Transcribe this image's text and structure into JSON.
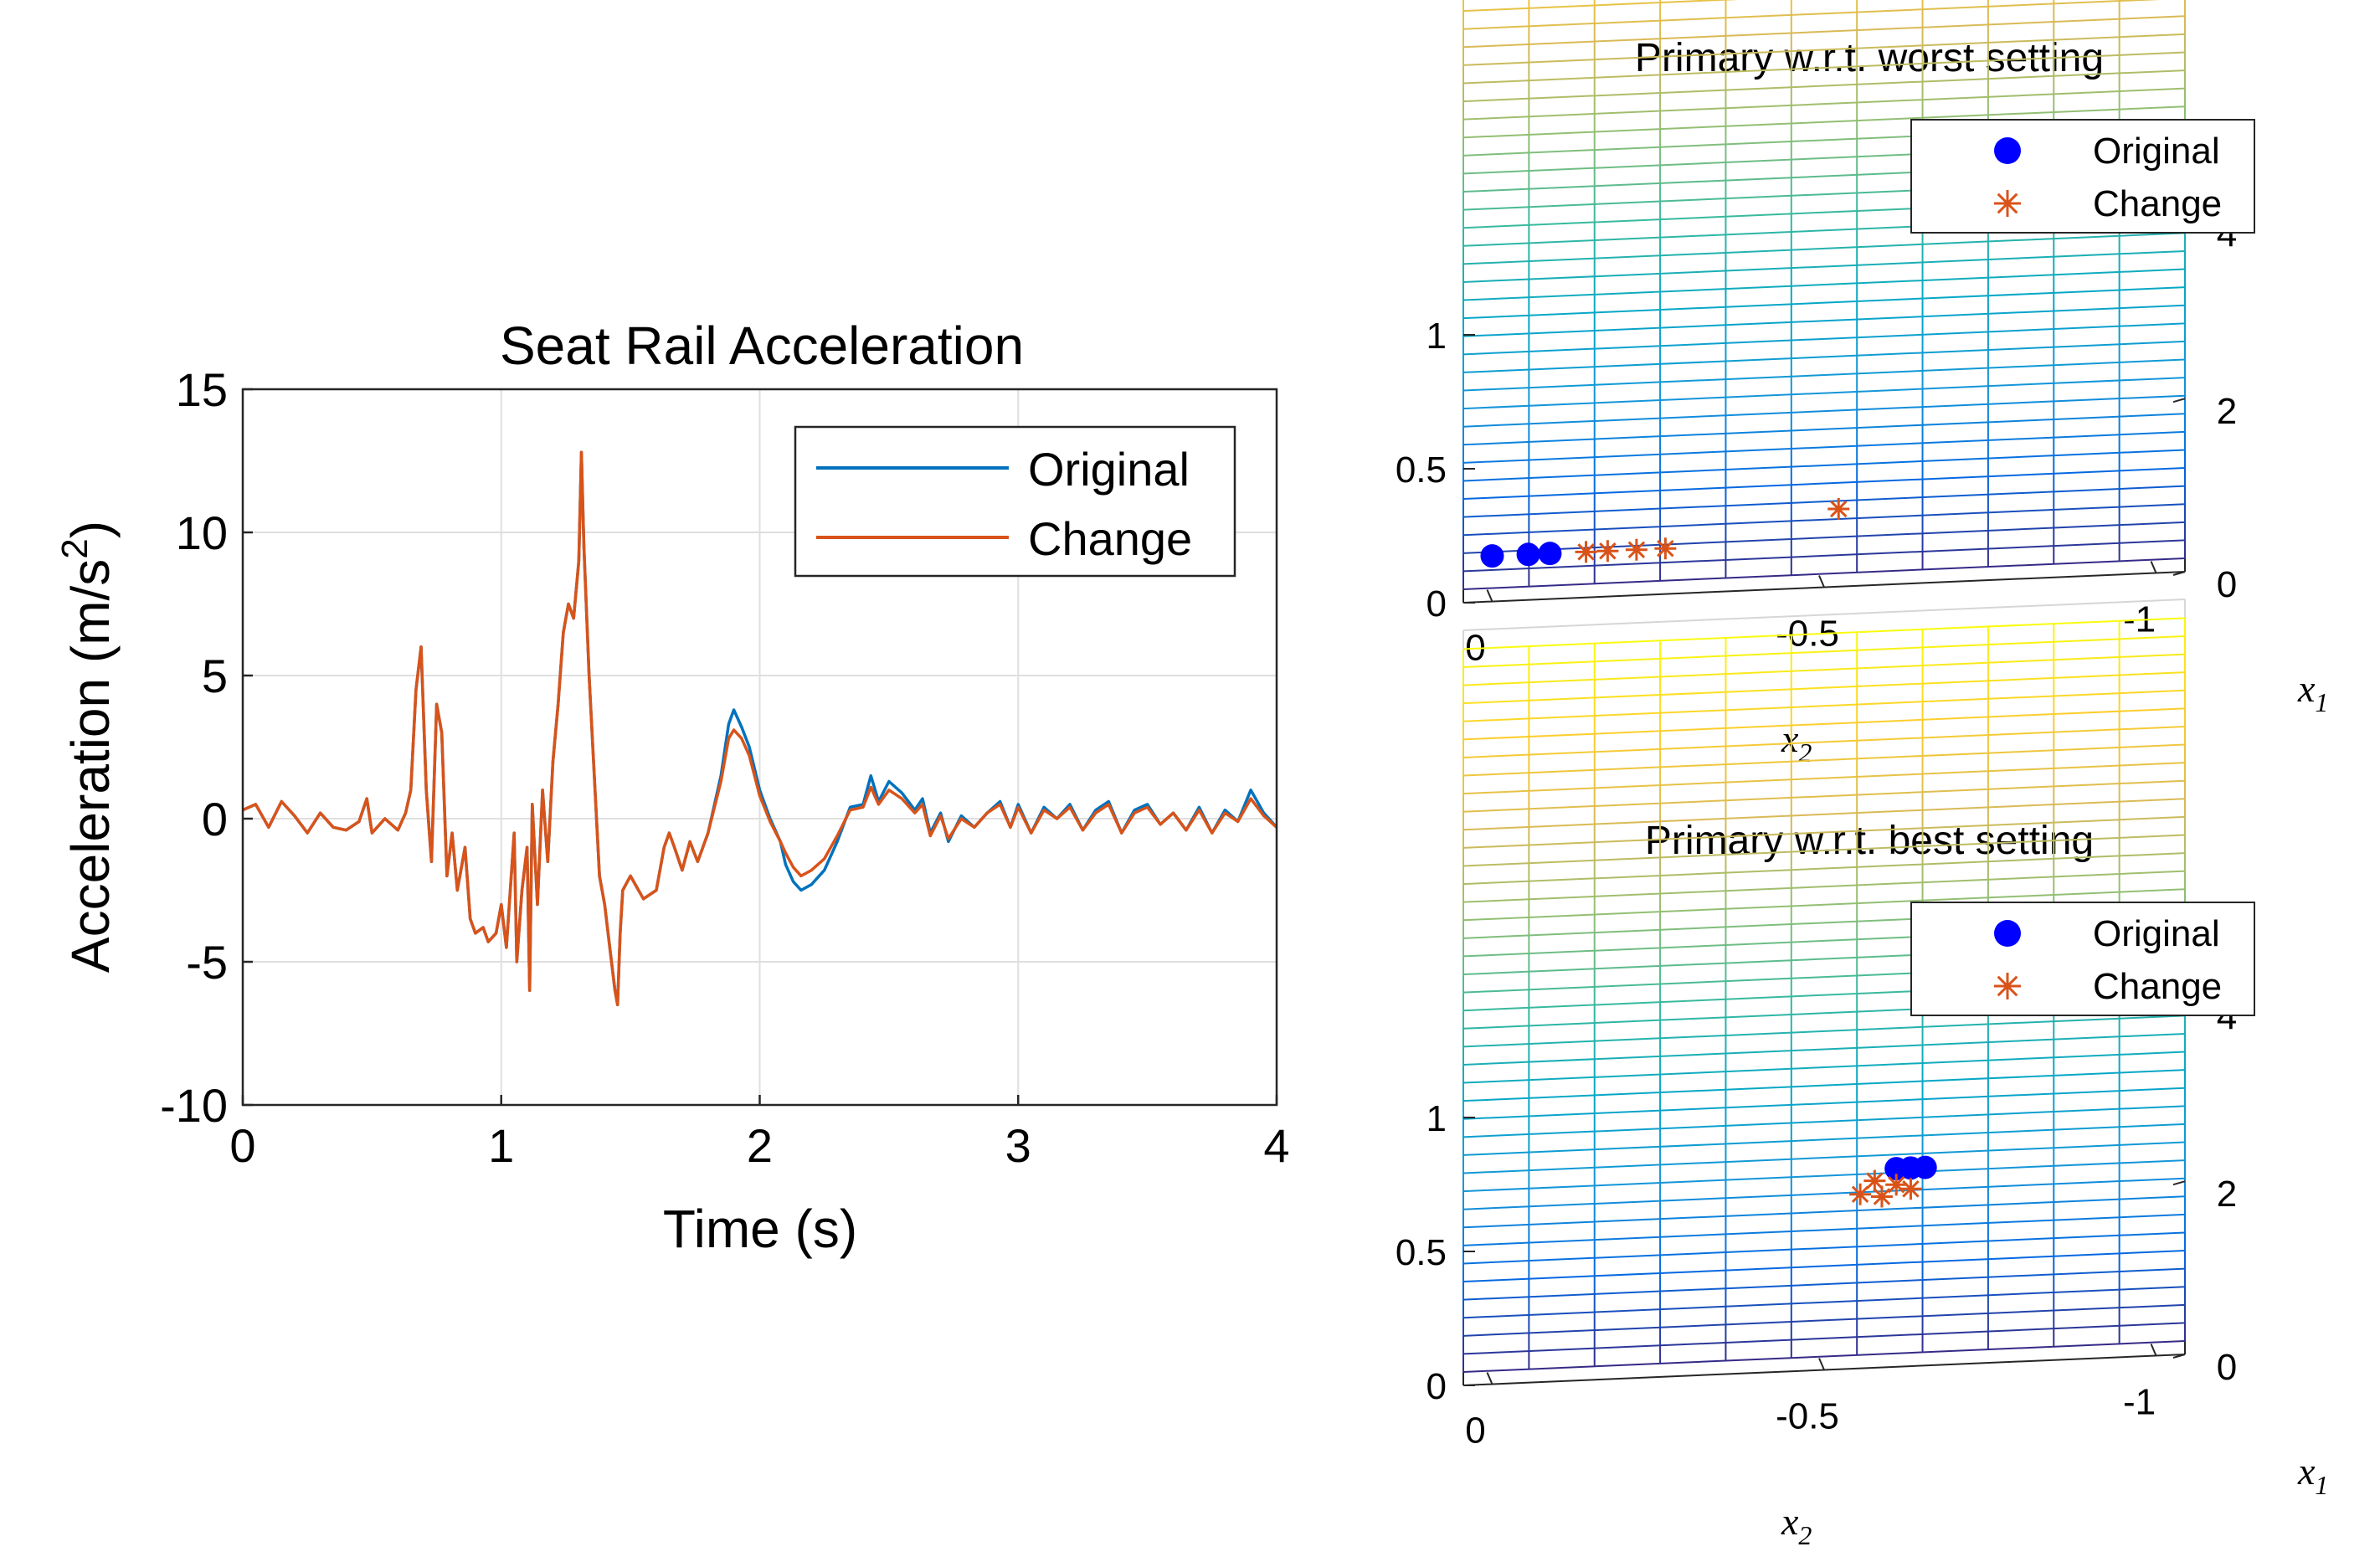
{
  "chart_data": [
    {
      "id": "seat-rail",
      "type": "line",
      "title": "Seat Rail Acceleration",
      "xlabel": "Time (s)",
      "ylabel_main": "Acceleration (m/s",
      "ylabel_sup": "2",
      "ylabel_close": ")",
      "xlim": [
        0,
        4
      ],
      "ylim": [
        -10,
        15
      ],
      "grid": true,
      "legend_position": "top-right",
      "xticks": [
        0,
        1,
        2,
        3,
        4
      ],
      "yticks": [
        -10,
        -5,
        0,
        5,
        10,
        15
      ],
      "xtick_labels": [
        "0",
        "1",
        "2",
        "3",
        "4"
      ],
      "ytick_labels": [
        "-10",
        "-5",
        "0",
        "5",
        "10",
        "15"
      ],
      "series": [
        {
          "name": "Original",
          "color": "#0072BD",
          "points": [
            [
              0,
              0.3
            ],
            [
              0.05,
              0.5
            ],
            [
              0.1,
              -0.3
            ],
            [
              0.15,
              0.6
            ],
            [
              0.2,
              0.1
            ],
            [
              0.25,
              -0.5
            ],
            [
              0.3,
              0.2
            ],
            [
              0.35,
              -0.3
            ],
            [
              0.4,
              -0.4
            ],
            [
              0.45,
              -0.1
            ],
            [
              0.48,
              0.7
            ],
            [
              0.5,
              -0.5
            ],
            [
              0.55,
              0
            ],
            [
              0.6,
              -0.4
            ],
            [
              0.63,
              0.2
            ],
            [
              0.65,
              1.0
            ],
            [
              0.67,
              4.5
            ],
            [
              0.69,
              6.0
            ],
            [
              0.71,
              1.0
            ],
            [
              0.73,
              -1.5
            ],
            [
              0.75,
              4.0
            ],
            [
              0.77,
              3.0
            ],
            [
              0.79,
              -2.0
            ],
            [
              0.81,
              -0.5
            ],
            [
              0.83,
              -2.5
            ],
            [
              0.86,
              -1.0
            ],
            [
              0.88,
              -3.5
            ],
            [
              0.9,
              -4.0
            ],
            [
              0.93,
              -3.8
            ],
            [
              0.95,
              -4.3
            ],
            [
              0.98,
              -4.0
            ],
            [
              1.0,
              -3.0
            ],
            [
              1.02,
              -4.5
            ],
            [
              1.05,
              -0.5
            ],
            [
              1.06,
              -5.0
            ],
            [
              1.08,
              -2.5
            ],
            [
              1.1,
              -1.0
            ],
            [
              1.11,
              -6.0
            ],
            [
              1.12,
              0.5
            ],
            [
              1.14,
              -3.0
            ],
            [
              1.16,
              1.0
            ],
            [
              1.18,
              -1.5
            ],
            [
              1.2,
              2.0
            ],
            [
              1.22,
              4.0
            ],
            [
              1.24,
              6.5
            ],
            [
              1.26,
              7.5
            ],
            [
              1.28,
              7.0
            ],
            [
              1.3,
              9.0
            ],
            [
              1.31,
              12.8
            ],
            [
              1.32,
              9.5
            ],
            [
              1.34,
              5.0
            ],
            [
              1.36,
              1.5
            ],
            [
              1.38,
              -2.0
            ],
            [
              1.4,
              -3.0
            ],
            [
              1.42,
              -4.5
            ],
            [
              1.44,
              -6.0
            ],
            [
              1.45,
              -6.5
            ],
            [
              1.46,
              -4.0
            ],
            [
              1.47,
              -2.5
            ],
            [
              1.5,
              -2.0
            ],
            [
              1.55,
              -2.8
            ],
            [
              1.6,
              -2.5
            ],
            [
              1.63,
              -1.0
            ],
            [
              1.65,
              -0.5
            ],
            [
              1.67,
              -1.0
            ],
            [
              1.7,
              -1.8
            ],
            [
              1.73,
              -0.8
            ],
            [
              1.76,
              -1.5
            ],
            [
              1.8,
              -0.5
            ],
            [
              1.85,
              1.5
            ],
            [
              1.88,
              3.3
            ],
            [
              1.9,
              3.8
            ],
            [
              1.93,
              3.2
            ],
            [
              1.96,
              2.5
            ],
            [
              2.0,
              1.0
            ],
            [
              2.04,
              0
            ],
            [
              2.08,
              -0.8
            ],
            [
              2.1,
              -1.6
            ],
            [
              2.13,
              -2.2
            ],
            [
              2.16,
              -2.5
            ],
            [
              2.2,
              -2.3
            ],
            [
              2.25,
              -1.8
            ],
            [
              2.3,
              -0.8
            ],
            [
              2.35,
              0.4
            ],
            [
              2.4,
              0.5
            ],
            [
              2.43,
              1.5
            ],
            [
              2.46,
              0.6
            ],
            [
              2.5,
              1.3
            ],
            [
              2.55,
              0.9
            ],
            [
              2.6,
              0.3
            ],
            [
              2.63,
              0.7
            ],
            [
              2.66,
              -0.5
            ],
            [
              2.7,
              0.2
            ],
            [
              2.73,
              -0.8
            ],
            [
              2.78,
              0.1
            ],
            [
              2.83,
              -0.3
            ],
            [
              2.88,
              0.2
            ],
            [
              2.93,
              0.6
            ],
            [
              2.97,
              -0.3
            ],
            [
              3.0,
              0.5
            ],
            [
              3.05,
              -0.5
            ],
            [
              3.1,
              0.4
            ],
            [
              3.15,
              0
            ],
            [
              3.2,
              0.5
            ],
            [
              3.25,
              -0.4
            ],
            [
              3.3,
              0.3
            ],
            [
              3.35,
              0.6
            ],
            [
              3.4,
              -0.5
            ],
            [
              3.45,
              0.3
            ],
            [
              3.5,
              0.5
            ],
            [
              3.55,
              -0.2
            ],
            [
              3.6,
              0.2
            ],
            [
              3.65,
              -0.4
            ],
            [
              3.7,
              0.4
            ],
            [
              3.75,
              -0.5
            ],
            [
              3.8,
              0.3
            ],
            [
              3.85,
              -0.1
            ],
            [
              3.9,
              1.0
            ],
            [
              3.95,
              0.2
            ],
            [
              4.0,
              -0.3
            ]
          ]
        },
        {
          "name": "Change",
          "color": "#D95319",
          "points": [
            [
              0,
              0.3
            ],
            [
              0.05,
              0.5
            ],
            [
              0.1,
              -0.3
            ],
            [
              0.15,
              0.6
            ],
            [
              0.2,
              0.1
            ],
            [
              0.25,
              -0.5
            ],
            [
              0.3,
              0.2
            ],
            [
              0.35,
              -0.3
            ],
            [
              0.4,
              -0.4
            ],
            [
              0.45,
              -0.1
            ],
            [
              0.48,
              0.7
            ],
            [
              0.5,
              -0.5
            ],
            [
              0.55,
              0
            ],
            [
              0.6,
              -0.4
            ],
            [
              0.63,
              0.2
            ],
            [
              0.65,
              1.0
            ],
            [
              0.67,
              4.5
            ],
            [
              0.69,
              6.0
            ],
            [
              0.71,
              1.0
            ],
            [
              0.73,
              -1.5
            ],
            [
              0.75,
              4.0
            ],
            [
              0.77,
              3.0
            ],
            [
              0.79,
              -2.0
            ],
            [
              0.81,
              -0.5
            ],
            [
              0.83,
              -2.5
            ],
            [
              0.86,
              -1.0
            ],
            [
              0.88,
              -3.5
            ],
            [
              0.9,
              -4.0
            ],
            [
              0.93,
              -3.8
            ],
            [
              0.95,
              -4.3
            ],
            [
              0.98,
              -4.0
            ],
            [
              1.0,
              -3.0
            ],
            [
              1.02,
              -4.5
            ],
            [
              1.05,
              -0.5
            ],
            [
              1.06,
              -5.0
            ],
            [
              1.08,
              -2.5
            ],
            [
              1.1,
              -1.0
            ],
            [
              1.11,
              -6.0
            ],
            [
              1.12,
              0.5
            ],
            [
              1.14,
              -3.0
            ],
            [
              1.16,
              1.0
            ],
            [
              1.18,
              -1.5
            ],
            [
              1.2,
              2.0
            ],
            [
              1.22,
              4.0
            ],
            [
              1.24,
              6.5
            ],
            [
              1.26,
              7.5
            ],
            [
              1.28,
              7.0
            ],
            [
              1.3,
              9.0
            ],
            [
              1.31,
              12.8
            ],
            [
              1.32,
              9.5
            ],
            [
              1.34,
              5.0
            ],
            [
              1.36,
              1.5
            ],
            [
              1.38,
              -2.0
            ],
            [
              1.4,
              -3.0
            ],
            [
              1.42,
              -4.5
            ],
            [
              1.44,
              -6.0
            ],
            [
              1.45,
              -6.5
            ],
            [
              1.46,
              -4.0
            ],
            [
              1.47,
              -2.5
            ],
            [
              1.5,
              -2.0
            ],
            [
              1.55,
              -2.8
            ],
            [
              1.6,
              -2.5
            ],
            [
              1.63,
              -1.0
            ],
            [
              1.65,
              -0.5
            ],
            [
              1.67,
              -1.0
            ],
            [
              1.7,
              -1.8
            ],
            [
              1.73,
              -0.8
            ],
            [
              1.76,
              -1.5
            ],
            [
              1.8,
              -0.5
            ],
            [
              1.85,
              1.3
            ],
            [
              1.88,
              2.8
            ],
            [
              1.9,
              3.1
            ],
            [
              1.93,
              2.8
            ],
            [
              1.96,
              2.2
            ],
            [
              2.0,
              0.8
            ],
            [
              2.04,
              -0.1
            ],
            [
              2.08,
              -0.8
            ],
            [
              2.1,
              -1.2
            ],
            [
              2.13,
              -1.7
            ],
            [
              2.16,
              -2.0
            ],
            [
              2.2,
              -1.8
            ],
            [
              2.25,
              -1.4
            ],
            [
              2.3,
              -0.6
            ],
            [
              2.35,
              0.3
            ],
            [
              2.4,
              0.4
            ],
            [
              2.43,
              1.1
            ],
            [
              2.46,
              0.5
            ],
            [
              2.5,
              1.0
            ],
            [
              2.55,
              0.7
            ],
            [
              2.6,
              0.2
            ],
            [
              2.63,
              0.5
            ],
            [
              2.66,
              -0.6
            ],
            [
              2.7,
              0.1
            ],
            [
              2.73,
              -0.7
            ],
            [
              2.78,
              0
            ],
            [
              2.83,
              -0.3
            ],
            [
              2.88,
              0.2
            ],
            [
              2.93,
              0.5
            ],
            [
              2.97,
              -0.3
            ],
            [
              3.0,
              0.4
            ],
            [
              3.05,
              -0.5
            ],
            [
              3.1,
              0.3
            ],
            [
              3.15,
              0
            ],
            [
              3.2,
              0.4
            ],
            [
              3.25,
              -0.4
            ],
            [
              3.3,
              0.2
            ],
            [
              3.35,
              0.5
            ],
            [
              3.4,
              -0.5
            ],
            [
              3.45,
              0.2
            ],
            [
              3.5,
              0.4
            ],
            [
              3.55,
              -0.2
            ],
            [
              3.6,
              0.2
            ],
            [
              3.65,
              -0.4
            ],
            [
              3.7,
              0.3
            ],
            [
              3.75,
              -0.5
            ],
            [
              3.8,
              0.2
            ],
            [
              3.85,
              -0.1
            ],
            [
              3.9,
              0.7
            ],
            [
              3.95,
              0.1
            ],
            [
              4.0,
              -0.3
            ]
          ]
        }
      ]
    },
    {
      "id": "worst",
      "type": "scatter",
      "title": "Primary w.r.t. worst setting",
      "xlabel": "x",
      "xlabel_sub": "2",
      "ylabel": "x",
      "ylabel_sub": "1",
      "zlabel": "",
      "x2_ticks": [
        "0",
        "-0.5",
        "-1"
      ],
      "x1_ticks": [
        "0",
        "2",
        "4"
      ],
      "z_ticks": [
        "0",
        "0.5",
        "1"
      ],
      "zlim": [
        0,
        1
      ],
      "legend_position": "top-right",
      "series": [
        {
          "name": "Original",
          "color": "#0000FF",
          "marker": "circle",
          "points": [
            [
              -0.04,
              0.2
            ],
            [
              -0.09,
              0.2
            ],
            [
              -0.12,
              0.2
            ]
          ]
        },
        {
          "name": "Change",
          "color": "#D95319",
          "marker": "asterisk",
          "points": [
            [
              -0.17,
              0.2
            ],
            [
              -0.2,
              0.2
            ],
            [
              -0.24,
              0.2
            ],
            [
              -0.28,
              0.2
            ],
            [
              -0.52,
              0.4
            ]
          ]
        }
      ]
    },
    {
      "id": "best",
      "type": "scatter",
      "title": "Primary w.r.t. best setting",
      "xlabel": "x",
      "xlabel_sub": "2",
      "ylabel": "x",
      "ylabel_sub": "1",
      "zlabel": "",
      "x2_ticks": [
        "0",
        "-0.5",
        "-1"
      ],
      "x1_ticks": [
        "0",
        "2",
        "4"
      ],
      "z_ticks": [
        "0",
        "0.5",
        "1"
      ],
      "zlim": [
        0,
        1
      ],
      "legend_position": "top-right",
      "series": [
        {
          "name": "Original",
          "color": "#0000FF",
          "marker": "circle",
          "points": [
            [
              -0.6,
              1.15
            ],
            [
              -0.62,
              1.15
            ],
            [
              -0.64,
              1.15
            ]
          ]
        },
        {
          "name": "Change",
          "color": "#D95319",
          "marker": "asterisk",
          "points": [
            [
              -0.57,
              1.08
            ],
            [
              -0.6,
              1.05
            ],
            [
              -0.55,
              1.0
            ],
            [
              -0.58,
              0.98
            ],
            [
              -0.62,
              1.02
            ]
          ]
        }
      ]
    }
  ]
}
